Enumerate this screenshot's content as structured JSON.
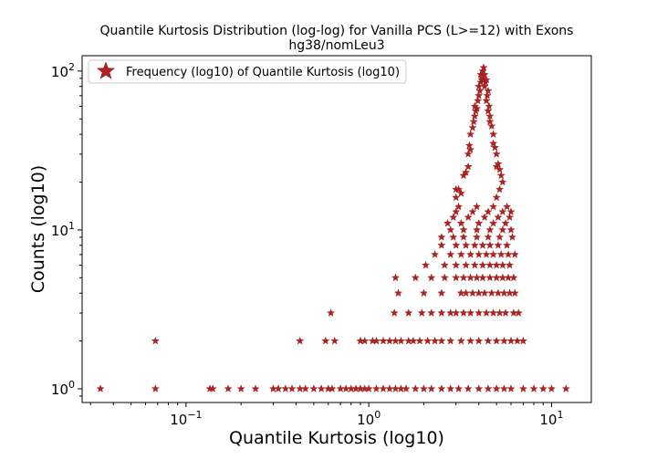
{
  "chart_data": {
    "type": "scatter",
    "title": "Quantile Kurtosis Distribution (log-log) for Vanilla PCS (L>=12) with Exons",
    "subtitle": "hg38/nomLeu3",
    "xlabel": "Quantile Kurtosis (log10)",
    "ylabel": "Counts (log10)",
    "xscale": "log",
    "yscale": "log",
    "xlim": [
      0.027,
      16.5
    ],
    "ylim": [
      0.82,
      125
    ],
    "x_ticks": [
      {
        "value": 0.1,
        "base": "10",
        "exp": "−1"
      },
      {
        "value": 1,
        "base": "10",
        "exp": "0"
      },
      {
        "value": 10,
        "base": "10",
        "exp": "1"
      }
    ],
    "y_ticks": [
      {
        "value": 1,
        "base": "10",
        "exp": "0"
      },
      {
        "value": 10,
        "base": "10",
        "exp": "1"
      },
      {
        "value": 100,
        "base": "10",
        "exp": "2"
      }
    ],
    "marker": "star",
    "color": "#b22222",
    "legend": {
      "position": "upper-left"
    },
    "series": [
      {
        "name": "Frequency (log10) of Quantile Kurtosis (log10)",
        "points": [
          [
            0.034,
            1
          ],
          [
            0.068,
            1
          ],
          [
            0.068,
            2
          ],
          [
            0.135,
            1
          ],
          [
            0.14,
            1
          ],
          [
            0.17,
            1
          ],
          [
            0.2,
            1
          ],
          [
            0.24,
            1
          ],
          [
            0.3,
            1
          ],
          [
            0.32,
            1
          ],
          [
            0.35,
            1
          ],
          [
            0.38,
            1
          ],
          [
            0.42,
            1
          ],
          [
            0.45,
            1
          ],
          [
            0.5,
            1
          ],
          [
            0.55,
            1
          ],
          [
            0.6,
            1
          ],
          [
            0.63,
            1
          ],
          [
            0.7,
            1
          ],
          [
            0.75,
            1
          ],
          [
            0.8,
            1
          ],
          [
            0.85,
            1
          ],
          [
            0.9,
            1
          ],
          [
            0.95,
            1
          ],
          [
            1.0,
            1
          ],
          [
            1.1,
            1
          ],
          [
            1.2,
            1
          ],
          [
            1.3,
            1
          ],
          [
            1.4,
            1
          ],
          [
            1.5,
            1
          ],
          [
            1.6,
            1
          ],
          [
            1.8,
            1
          ],
          [
            2.0,
            1
          ],
          [
            2.2,
            1
          ],
          [
            2.5,
            1
          ],
          [
            2.8,
            1
          ],
          [
            3.1,
            1
          ],
          [
            3.5,
            1
          ],
          [
            4.0,
            1
          ],
          [
            4.5,
            1
          ],
          [
            5.0,
            1
          ],
          [
            5.5,
            1
          ],
          [
            6.0,
            1
          ],
          [
            7.0,
            1
          ],
          [
            8.0,
            1
          ],
          [
            9.0,
            1
          ],
          [
            10.0,
            1
          ],
          [
            12.0,
            1
          ],
          [
            0.42,
            2
          ],
          [
            0.58,
            2
          ],
          [
            0.65,
            2
          ],
          [
            0.9,
            2
          ],
          [
            0.95,
            2
          ],
          [
            1.05,
            2
          ],
          [
            1.1,
            2
          ],
          [
            1.2,
            2
          ],
          [
            1.3,
            2
          ],
          [
            1.4,
            2
          ],
          [
            1.5,
            2
          ],
          [
            1.65,
            2
          ],
          [
            1.75,
            2
          ],
          [
            1.9,
            2
          ],
          [
            2.1,
            2
          ],
          [
            2.3,
            2
          ],
          [
            2.5,
            2
          ],
          [
            2.8,
            2
          ],
          [
            3.2,
            2
          ],
          [
            3.6,
            2
          ],
          [
            4.0,
            2
          ],
          [
            4.5,
            2
          ],
          [
            5.0,
            2
          ],
          [
            5.5,
            2
          ],
          [
            6.0,
            2
          ],
          [
            6.5,
            2
          ],
          [
            7.0,
            2
          ],
          [
            0.62,
            3
          ],
          [
            1.38,
            3
          ],
          [
            1.65,
            3
          ],
          [
            1.95,
            3
          ],
          [
            2.2,
            3
          ],
          [
            2.5,
            3
          ],
          [
            2.8,
            3
          ],
          [
            3.0,
            3
          ],
          [
            3.3,
            3
          ],
          [
            3.6,
            3
          ],
          [
            4.0,
            3
          ],
          [
            4.4,
            3
          ],
          [
            4.8,
            3
          ],
          [
            5.2,
            3
          ],
          [
            5.6,
            3
          ],
          [
            6.2,
            3
          ],
          [
            6.6,
            3
          ],
          [
            1.45,
            4
          ],
          [
            2.0,
            4
          ],
          [
            2.5,
            4
          ],
          [
            3.2,
            4
          ],
          [
            3.4,
            4
          ],
          [
            3.7,
            4
          ],
          [
            4.0,
            4
          ],
          [
            4.3,
            4
          ],
          [
            4.7,
            4
          ],
          [
            5.1,
            4
          ],
          [
            5.5,
            4
          ],
          [
            5.9,
            4
          ],
          [
            6.3,
            4
          ],
          [
            1.4,
            5
          ],
          [
            1.8,
            5
          ],
          [
            2.2,
            5
          ],
          [
            2.6,
            5
          ],
          [
            3.0,
            5
          ],
          [
            3.3,
            5
          ],
          [
            3.6,
            5
          ],
          [
            3.9,
            5
          ],
          [
            4.2,
            5
          ],
          [
            4.6,
            5
          ],
          [
            5.0,
            5
          ],
          [
            5.4,
            5
          ],
          [
            5.8,
            5
          ],
          [
            6.2,
            5
          ],
          [
            2.05,
            6
          ],
          [
            2.6,
            6
          ],
          [
            3.0,
            6
          ],
          [
            3.4,
            6
          ],
          [
            3.8,
            6
          ],
          [
            4.2,
            6
          ],
          [
            4.6,
            6
          ],
          [
            5.0,
            6
          ],
          [
            5.4,
            6
          ],
          [
            5.9,
            6
          ],
          [
            2.3,
            7
          ],
          [
            2.8,
            7
          ],
          [
            3.2,
            7
          ],
          [
            3.6,
            7
          ],
          [
            4.0,
            7
          ],
          [
            4.4,
            7
          ],
          [
            4.8,
            7
          ],
          [
            5.3,
            7
          ],
          [
            5.8,
            7
          ],
          [
            6.3,
            7
          ],
          [
            2.5,
            8
          ],
          [
            3.0,
            8
          ],
          [
            3.4,
            8
          ],
          [
            3.8,
            8
          ],
          [
            4.2,
            8
          ],
          [
            4.6,
            8
          ],
          [
            5.1,
            8
          ],
          [
            5.7,
            8
          ],
          [
            2.5,
            9
          ],
          [
            2.9,
            9
          ],
          [
            3.3,
            9
          ],
          [
            3.9,
            9
          ],
          [
            4.5,
            9
          ],
          [
            5.2,
            9
          ],
          [
            6.1,
            9
          ],
          [
            2.8,
            10
          ],
          [
            3.3,
            10
          ],
          [
            3.9,
            10
          ],
          [
            4.6,
            10
          ],
          [
            5.4,
            10
          ],
          [
            6.0,
            10
          ],
          [
            2.7,
            11
          ],
          [
            3.2,
            11
          ],
          [
            4.0,
            11
          ],
          [
            4.8,
            11
          ],
          [
            5.6,
            11
          ],
          [
            2.9,
            12
          ],
          [
            3.5,
            12
          ],
          [
            4.3,
            12
          ],
          [
            5.1,
            12
          ],
          [
            5.9,
            12
          ],
          [
            3.0,
            13
          ],
          [
            3.7,
            13
          ],
          [
            4.5,
            13
          ],
          [
            5.4,
            13
          ],
          [
            6.0,
            13
          ],
          [
            3.1,
            14
          ],
          [
            3.9,
            14
          ],
          [
            4.8,
            14
          ],
          [
            5.7,
            14
          ],
          [
            3.0,
            16
          ],
          [
            3.2,
            17
          ],
          [
            3.0,
            18
          ],
          [
            3.1,
            18
          ],
          [
            5.0,
            16
          ],
          [
            5.2,
            18
          ],
          [
            5.4,
            20
          ],
          [
            3.3,
            22
          ],
          [
            3.4,
            23
          ],
          [
            3.5,
            25
          ],
          [
            5.3,
            22
          ],
          [
            5.2,
            24
          ],
          [
            5.0,
            25
          ],
          [
            5.1,
            26
          ],
          [
            3.5,
            30
          ],
          [
            3.6,
            32
          ],
          [
            3.55,
            34
          ],
          [
            5.0,
            30
          ],
          [
            4.9,
            33
          ],
          [
            4.8,
            35
          ],
          [
            3.6,
            40
          ],
          [
            3.7,
            44
          ],
          [
            3.75,
            48
          ],
          [
            4.8,
            40
          ],
          [
            4.7,
            45
          ],
          [
            4.6,
            48
          ],
          [
            3.8,
            52
          ],
          [
            3.85,
            56
          ],
          [
            3.9,
            58
          ],
          [
            3.8,
            60
          ],
          [
            4.6,
            52
          ],
          [
            4.5,
            56
          ],
          [
            4.55,
            60
          ],
          [
            3.95,
            65
          ],
          [
            4.0,
            70
          ],
          [
            4.05,
            75
          ],
          [
            4.4,
            65
          ],
          [
            4.45,
            70
          ],
          [
            4.5,
            75
          ],
          [
            4.0,
            80
          ],
          [
            4.1,
            85
          ],
          [
            4.15,
            88
          ],
          [
            4.3,
            80
          ],
          [
            4.35,
            85
          ],
          [
            4.2,
            90
          ],
          [
            4.1,
            95
          ],
          [
            4.2,
            100
          ],
          [
            4.25,
            105
          ],
          [
            4.3,
            95
          ],
          [
            4.15,
            92
          ],
          [
            4.4,
            88
          ]
        ]
      }
    ]
  }
}
